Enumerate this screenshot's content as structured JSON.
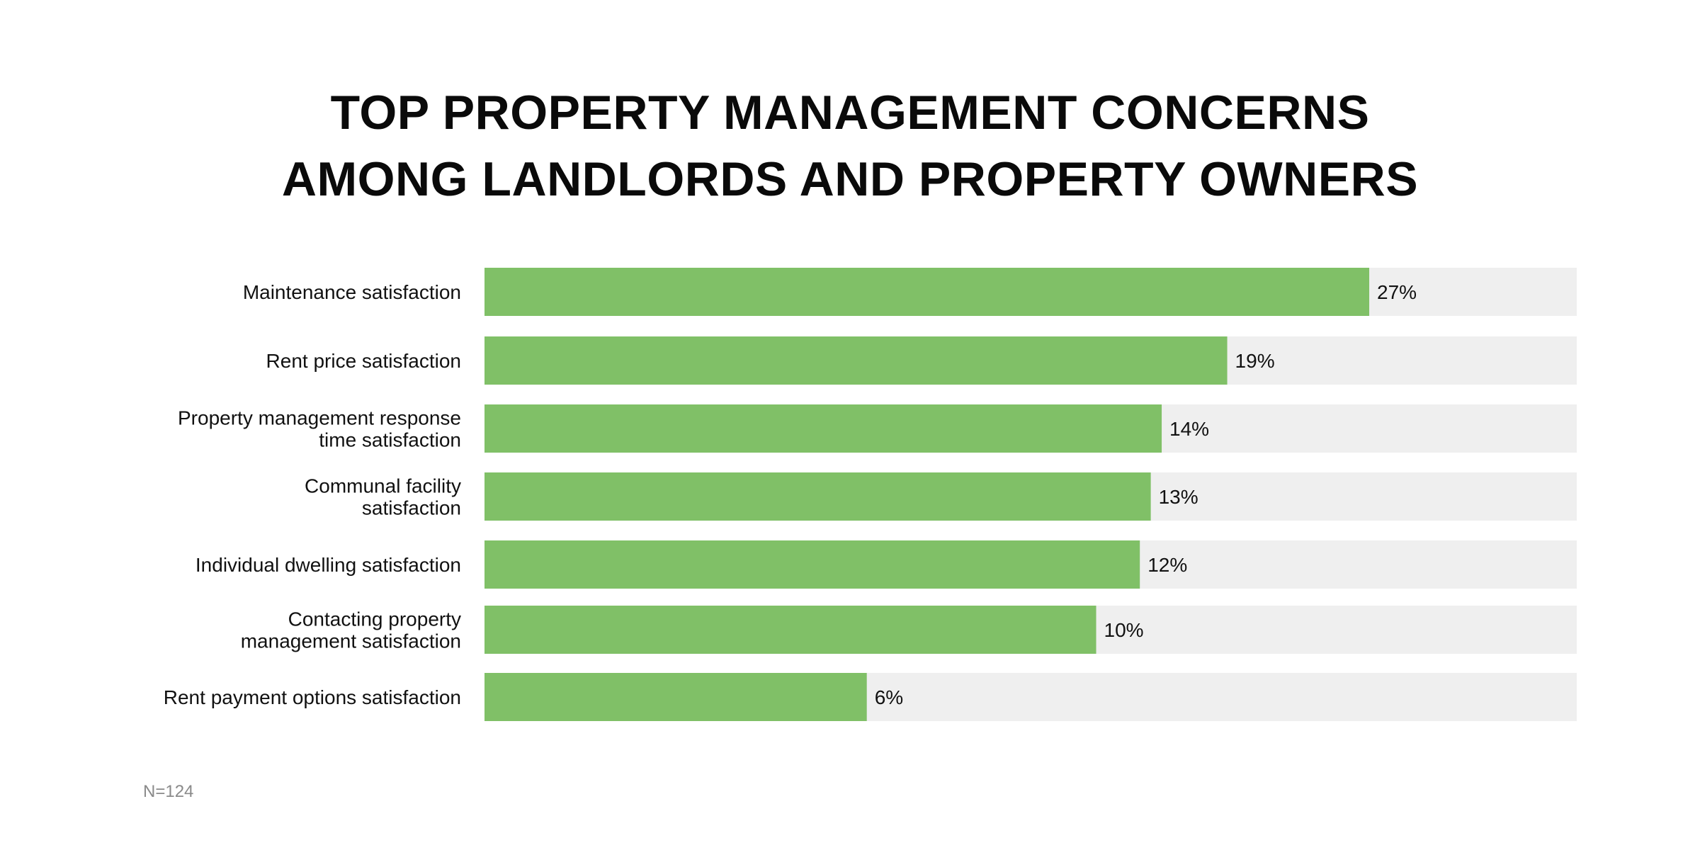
{
  "chart_data": {
    "type": "bar",
    "orientation": "horizontal",
    "title": [
      "TOP PROPERTY MANAGEMENT CONCERNS",
      "AMONG LANDLORDS AND PROPERTY OWNERS"
    ],
    "categories": [
      [
        "Maintenance satisfaction"
      ],
      [
        "Rent price satisfaction"
      ],
      [
        "Property management response",
        "time satisfaction"
      ],
      [
        "Communal facility",
        "satisfaction"
      ],
      [
        "Individual dwelling satisfaction"
      ],
      [
        "Contacting property",
        "management satisfaction"
      ],
      [
        "Rent payment options satisfaction"
      ]
    ],
    "values": [
      27,
      19,
      14,
      13,
      12,
      10,
      6
    ],
    "value_labels": [
      "27%",
      "19%",
      "14%",
      "13%",
      "12%",
      "10%",
      "6%"
    ],
    "bar_fill_fraction": [
      0.81,
      0.68,
      0.62,
      0.61,
      0.6,
      0.56,
      0.35
    ],
    "unit": "%",
    "grid": false,
    "legend": "none",
    "colors": {
      "bar": "#80c067",
      "track": "#efefef"
    }
  },
  "footnote": "N=124"
}
